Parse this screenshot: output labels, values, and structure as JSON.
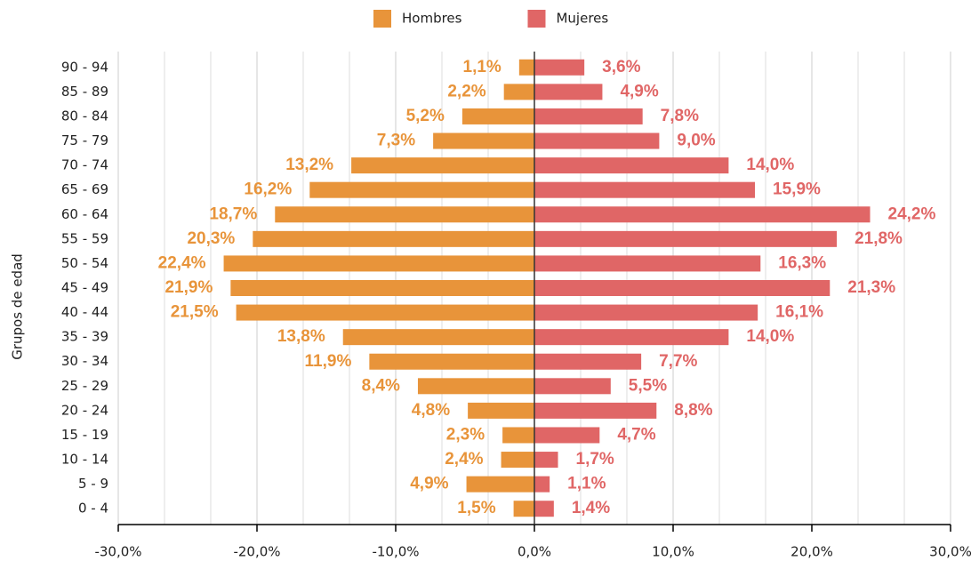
{
  "chart_data": {
    "type": "bar",
    "orientation": "horizontal",
    "y_axis_label": "Grupos de edad",
    "categories": [
      "90 - 94",
      "85 - 89",
      "80 - 84",
      "75 - 79",
      "70 - 74",
      "65 - 69",
      "60 - 64",
      "55 - 59",
      "50 - 54",
      "45 - 49",
      "40 - 44",
      "35 - 39",
      "30 - 34",
      "25 - 29",
      "20 - 24",
      "15 - 19",
      "10 - 14",
      "5 - 9",
      "0 - 4"
    ],
    "series": [
      {
        "name": "Hombres",
        "color": "#e8943a",
        "values": [
          -1.1,
          -2.2,
          -5.2,
          -7.3,
          -13.2,
          -16.2,
          -18.7,
          -20.3,
          -22.4,
          -21.9,
          -21.5,
          -13.8,
          -11.9,
          -8.4,
          -4.8,
          -2.3,
          -2.4,
          -4.9,
          -1.5
        ],
        "value_labels": [
          "1,1%",
          "2,2%",
          "5,2%",
          "7,3%",
          "13,2%",
          "16,2%",
          "18,7%",
          "20,3%",
          "22,4%",
          "21,9%",
          "21,5%",
          "13,8%",
          "11,9%",
          "8,4%",
          "4,8%",
          "2,3%",
          "2,4%",
          "4,9%",
          "1,5%"
        ]
      },
      {
        "name": "Mujeres",
        "color": "#e06666",
        "values": [
          3.6,
          4.9,
          7.8,
          9.0,
          14.0,
          15.9,
          24.2,
          21.8,
          16.3,
          21.3,
          16.1,
          14.0,
          7.7,
          5.5,
          8.8,
          4.7,
          1.7,
          1.1,
          1.4
        ],
        "value_labels": [
          "3,6%",
          "4,9%",
          "7,8%",
          "9,0%",
          "14,0%",
          "15,9%",
          "24,2%",
          "21,8%",
          "16,3%",
          "21,3%",
          "16,1%",
          "14,0%",
          "7,7%",
          "5,5%",
          "8,8%",
          "4,7%",
          "1,7%",
          "1,1%",
          "1,4%"
        ]
      }
    ],
    "xlim": [
      -30,
      30
    ],
    "xticks": [
      {
        "value": -30,
        "label": "-30,0%"
      },
      {
        "value": -20,
        "label": "-20,0%"
      },
      {
        "value": -10,
        "label": "-10,0%"
      },
      {
        "value": 0,
        "label": "0,0%"
      },
      {
        "value": 10,
        "label": "10,0%"
      },
      {
        "value": 20,
        "label": "20,0%"
      },
      {
        "value": 30,
        "label": "30,0%"
      }
    ],
    "grid": true,
    "legend": "top"
  }
}
